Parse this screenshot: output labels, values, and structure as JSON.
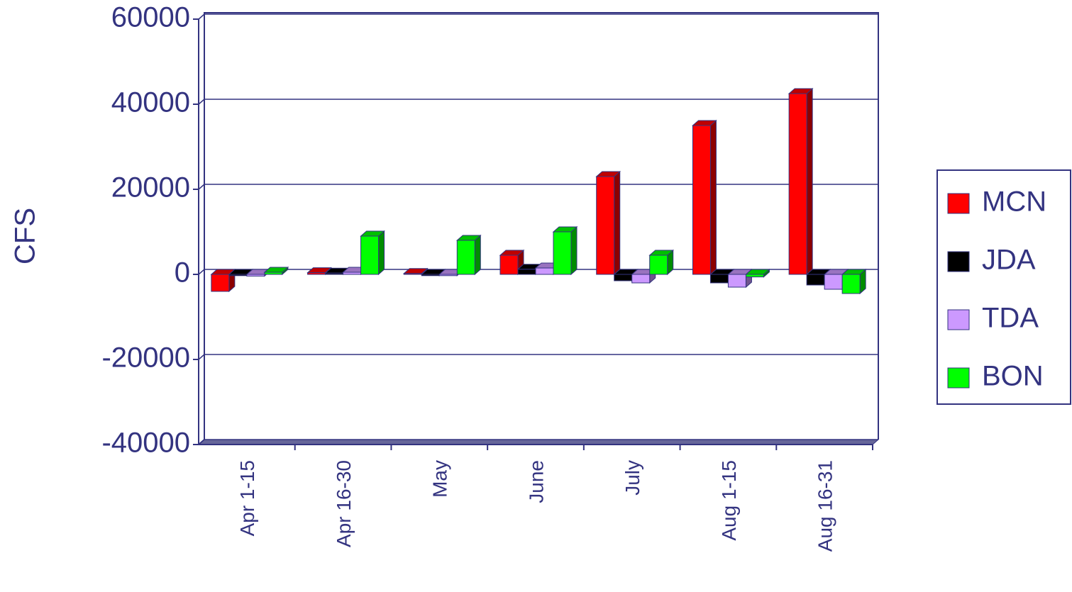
{
  "chart_data": {
    "type": "bar3d",
    "y_label": "CFS",
    "categories": [
      "Apr 1-15",
      "Apr 16-30",
      "May",
      "June",
      "July",
      "Aug 1-15",
      "Aug 16-31"
    ],
    "series": [
      {
        "name": "MCN",
        "color": "#ff0000",
        "values": [
          -4000,
          400,
          200,
          4500,
          23000,
          35000,
          42500
        ]
      },
      {
        "name": "JDA",
        "color": "#000000",
        "values": [
          -300,
          300,
          -300,
          1200,
          -1500,
          -2000,
          -2500
        ]
      },
      {
        "name": "TDA",
        "color": "#cc99ff",
        "values": [
          -400,
          500,
          -300,
          1500,
          -2000,
          -3000,
          -3500
        ]
      },
      {
        "name": "BON",
        "color": "#00ff00",
        "values": [
          500,
          9000,
          8000,
          10000,
          4500,
          -600,
          -4500
        ]
      }
    ],
    "ylim": [
      -40000,
      60000
    ],
    "yticks": [
      -40000,
      -20000,
      0,
      20000,
      40000,
      60000
    ],
    "grid": true,
    "legend": "right"
  }
}
